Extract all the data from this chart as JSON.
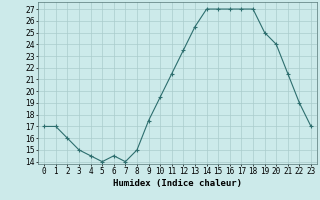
{
  "x": [
    0,
    1,
    2,
    3,
    4,
    5,
    6,
    7,
    8,
    9,
    10,
    11,
    12,
    13,
    14,
    15,
    16,
    17,
    18,
    19,
    20,
    21,
    22,
    23
  ],
  "y": [
    17,
    17,
    16,
    15,
    14.5,
    14,
    14.5,
    14,
    15,
    17.5,
    19.5,
    21.5,
    23.5,
    25.5,
    27,
    27,
    27,
    27,
    27,
    25,
    24,
    21.5,
    19,
    17
  ],
  "line_color": "#2d6e6e",
  "marker": "+",
  "marker_color": "#2d6e6e",
  "bg_color": "#cceaea",
  "grid_color": "#aacccc",
  "xlabel": "Humidex (Indice chaleur)",
  "ylabel": "",
  "xlim": [
    -0.5,
    23.5
  ],
  "ylim": [
    13.8,
    27.6
  ],
  "yticks": [
    14,
    15,
    16,
    17,
    18,
    19,
    20,
    21,
    22,
    23,
    24,
    25,
    26,
    27
  ],
  "xtick_labels": [
    "0",
    "1",
    "2",
    "3",
    "4",
    "5",
    "6",
    "7",
    "8",
    "9",
    "10",
    "11",
    "12",
    "13",
    "14",
    "15",
    "16",
    "17",
    "18",
    "19",
    "20",
    "21",
    "22",
    "23"
  ],
  "label_fontsize": 6.5,
  "tick_fontsize": 5.5
}
